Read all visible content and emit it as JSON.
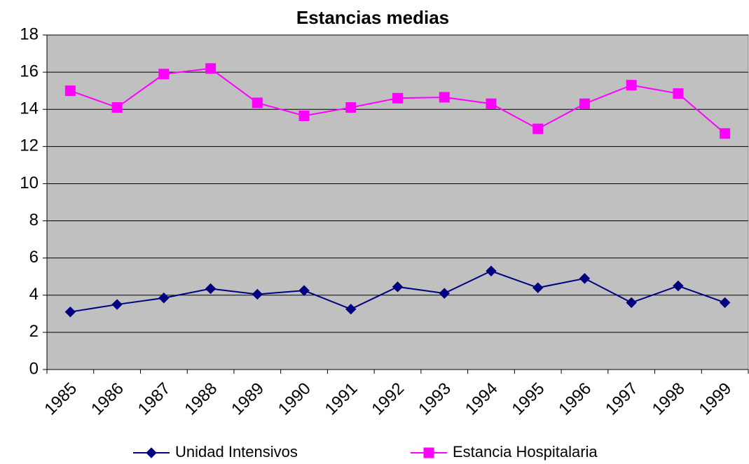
{
  "chart_data": {
    "type": "line",
    "title": "Estancias medias",
    "categories": [
      "1985",
      "1986",
      "1987",
      "1988",
      "1989",
      "1990",
      "1991",
      "1992",
      "1993",
      "1994",
      "1995",
      "1996",
      "1997",
      "1998",
      "1999"
    ],
    "series": [
      {
        "name": "Unidad Intensivos",
        "color": "#000080",
        "marker": "diamond",
        "values": [
          3.1,
          3.5,
          3.85,
          4.35,
          4.05,
          4.25,
          3.25,
          4.45,
          4.1,
          5.3,
          4.4,
          4.9,
          3.6,
          4.5,
          3.6
        ]
      },
      {
        "name": "Estancia Hospitalaria",
        "color": "#ff00ff",
        "marker": "square",
        "values": [
          15.0,
          14.1,
          15.9,
          16.2,
          14.35,
          13.65,
          14.1,
          14.6,
          14.65,
          14.3,
          12.95,
          14.3,
          15.3,
          14.85,
          12.7
        ]
      }
    ],
    "ylim": [
      0,
      18
    ],
    "yticks": [
      0,
      2,
      4,
      6,
      8,
      10,
      12,
      14,
      16,
      18
    ],
    "grid": true,
    "legend": "bottom"
  }
}
